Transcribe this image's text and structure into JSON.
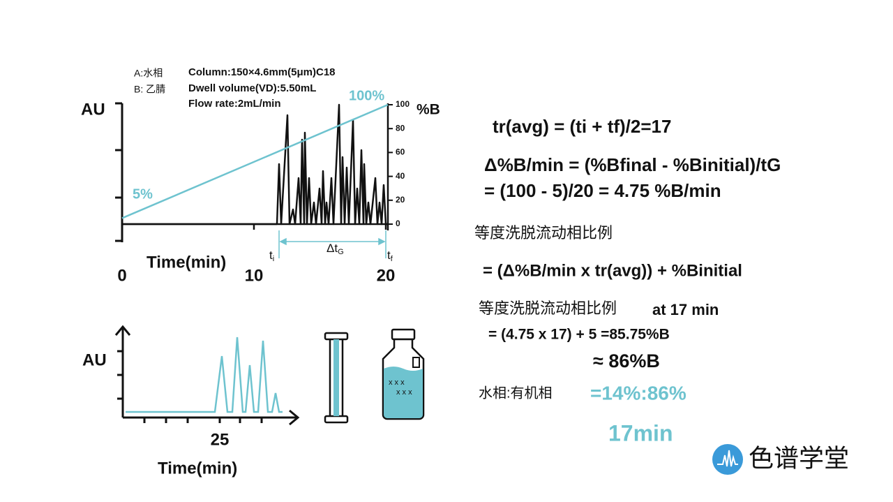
{
  "gradient_chart": {
    "legend": [
      "A:水相",
      "B: 乙腈"
    ],
    "info": [
      "Column:150×4.6mm(5μm)C18",
      "Dwell volume(VD):5.50mL",
      "Flow rate:2mL/min"
    ],
    "y_label": "AU",
    "y2_label": "%B",
    "x_label": "Time(min)",
    "xlim": [
      0,
      20
    ],
    "xticks": [
      0,
      10,
      20
    ],
    "y2lim": [
      0,
      100
    ],
    "y2ticks": [
      0,
      20,
      40,
      60,
      80,
      100
    ],
    "gradient": {
      "values": [
        5,
        100
      ],
      "value_labels": [
        "5%",
        "100%"
      ]
    },
    "t_i": {
      "main": "t",
      "sub": "i"
    },
    "t_f": {
      "main": "t",
      "sub": "f"
    },
    "delta_t": {
      "main": "Δt",
      "sub": "G"
    }
  },
  "isocratic_chart": {
    "y_label": "AU",
    "x_label": "Time(min)",
    "xticks": [
      25
    ]
  },
  "equations": [
    "tr(avg) = (ti + tf)/2=17",
    "Δ%B/min = (%Bfinal - %Binitial)/tG",
    "= (100 - 5)/20 = 4.75 %B/min",
    "等度洗脱流动相比例",
    "= (Δ%B/min x tr(avg)) + %Binitial",
    "等度洗脱流动相比例",
    "at 17 min",
    "= (4.75 x 17) + 5 =85.75%B",
    "≈ 86%B",
    "水相:有机相",
    "=14%:86%",
    "17min"
  ],
  "logo": "色谱学堂"
}
